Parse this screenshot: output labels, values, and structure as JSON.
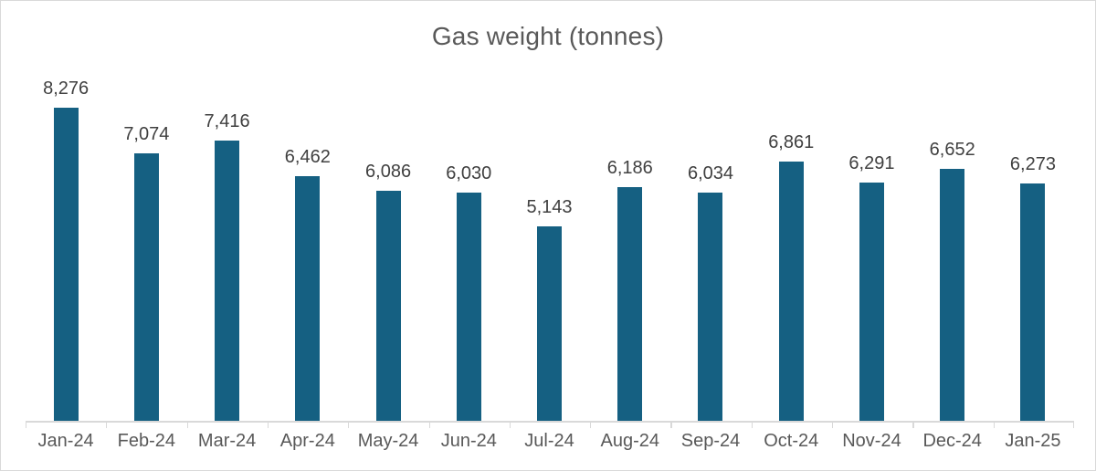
{
  "chart_data": {
    "type": "bar",
    "title": "Gas weight (tonnes)",
    "categories": [
      "Jan-24",
      "Feb-24",
      "Mar-24",
      "Apr-24",
      "May-24",
      "Jun-24",
      "Jul-24",
      "Aug-24",
      "Sep-24",
      "Oct-24",
      "Nov-24",
      "Dec-24",
      "Jan-25"
    ],
    "values": [
      8276,
      7074,
      7416,
      6462,
      6086,
      6030,
      5143,
      6186,
      6034,
      6861,
      6291,
      6652,
      6273
    ],
    "value_labels": [
      "8,276",
      "7,074",
      "7,416",
      "6,462",
      "6,086",
      "6,030",
      "5,143",
      "6,186",
      "6,034",
      "6,861",
      "6,291",
      "6,652",
      "6,273"
    ],
    "xlabel": "",
    "ylabel": "",
    "y_axis_visible": false,
    "gridlines": false,
    "legend": "none",
    "baseline": 0,
    "colors": {
      "bar": "#156082",
      "title": "#595959",
      "data_label": "#404040",
      "axis_label": "#595959",
      "axis_line": "#d9d9d9",
      "frame_border": "#d9d9d9",
      "background": "#ffffff"
    }
  }
}
